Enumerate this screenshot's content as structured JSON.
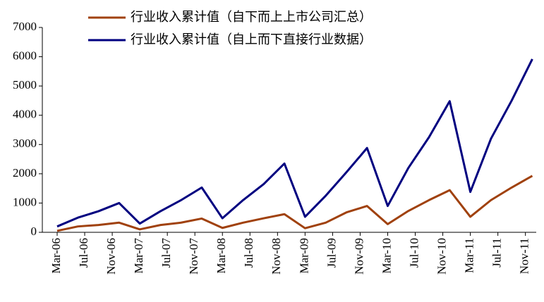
{
  "chart_data": {
    "type": "line",
    "x": [
      "2006-03",
      "2006-06",
      "2006-09",
      "2006-12",
      "2007-03",
      "2007-06",
      "2007-09",
      "2007-12",
      "2008-03",
      "2008-06",
      "2008-09",
      "2008-12",
      "2009-03",
      "2009-06",
      "2009-09",
      "2009-12",
      "2010-03",
      "2010-06",
      "2010-09",
      "2010-12",
      "2011-03",
      "2011-06",
      "2011-09",
      "2011-12"
    ],
    "xticks": [
      {
        "value": "2006-03",
        "label": "Mar-06"
      },
      {
        "value": "2006-07",
        "label": "Jul-06"
      },
      {
        "value": "2006-11",
        "label": "Nov-06"
      },
      {
        "value": "2007-03",
        "label": "Mar-07"
      },
      {
        "value": "2007-07",
        "label": "Jul-07"
      },
      {
        "value": "2007-11",
        "label": "Nov-07"
      },
      {
        "value": "2008-03",
        "label": "Mar-08"
      },
      {
        "value": "2008-07",
        "label": "Jul-08"
      },
      {
        "value": "2008-11",
        "label": "Nov-08"
      },
      {
        "value": "2009-03",
        "label": "Mar-09"
      },
      {
        "value": "2009-07",
        "label": "Jul-09"
      },
      {
        "value": "2009-11",
        "label": "Nov-09"
      },
      {
        "value": "2010-03",
        "label": "Mar-10"
      },
      {
        "value": "2010-07",
        "label": "Jul-10"
      },
      {
        "value": "2010-11",
        "label": "Nov-10"
      },
      {
        "value": "2011-03",
        "label": "Mar-11"
      },
      {
        "value": "2011-07",
        "label": "Jul-11"
      },
      {
        "value": "2011-11",
        "label": "Nov-11"
      }
    ],
    "ylim": [
      0,
      7000
    ],
    "yticks": [
      0,
      1000,
      2000,
      3000,
      4000,
      5000,
      6000,
      7000
    ],
    "series": [
      {
        "name": "行业收入累计值（自下而上上市公司汇总）",
        "color": "#a0410d",
        "values": [
          50,
          200,
          250,
          330,
          100,
          250,
          330,
          470,
          150,
          330,
          480,
          620,
          140,
          330,
          680,
          900,
          280,
          730,
          1100,
          1440,
          530,
          1100,
          1530,
          1930
        ]
      },
      {
        "name": "行业收入累计值（自上而下直接行业数据）",
        "color": "#000080",
        "values": [
          200,
          500,
          720,
          1000,
          300,
          720,
          1100,
          1530,
          480,
          1100,
          1650,
          2350,
          530,
          1250,
          2050,
          2880,
          900,
          2200,
          3250,
          4480,
          1380,
          3200,
          4500,
          5920
        ]
      }
    ]
  }
}
